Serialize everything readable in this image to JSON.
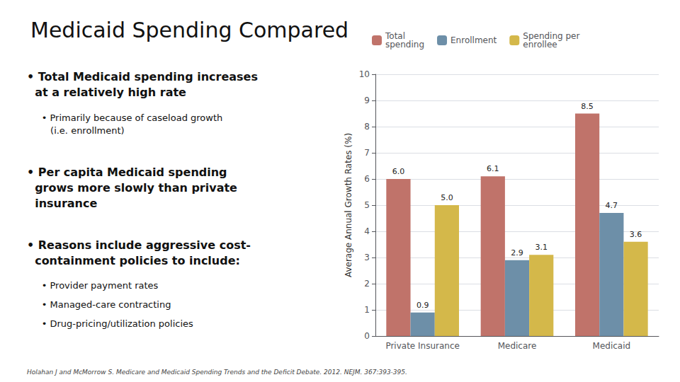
{
  "chart_data": {
    "type": "bar",
    "title": "Medicaid Spending Compared",
    "annotations": [
      "• Total Medicaid spending increases\n  at a relatively high rate",
      "     • Primarily because of caseload growth\n        (i.e. enrollment)",
      "• Per capita Medicaid spending\n  grows more slowly than private\n  insurance",
      "• Reasons include aggressive cost-\n  containment policies to include:",
      "     • Provider payment rates",
      "     • Managed-care contracting",
      "     • Drug-pricing/utilization policies",
      "Holahan J and McMorrow S. Medicare and Medicaid Spending Trends and the Deficit Debate. 2012. NEJM. 367:393-395."
    ],
    "categories": [
      "Private Insurance",
      "Medicare",
      "Medicaid"
    ],
    "series": [
      {
        "name": "Total\nspending",
        "color": "#c0736a",
        "values": [
          6.0,
          6.1,
          8.5
        ],
        "value_labels": [
          "6.0",
          "6.1",
          "8.5"
        ]
      },
      {
        "name": "Enrollment",
        "color": "#6d8fa8",
        "values": [
          0.9,
          2.9,
          4.7
        ],
        "value_labels": [
          "0.9",
          "2.9",
          "4.7"
        ]
      },
      {
        "name": "Spending per\nenrollee",
        "color": "#d4b84a",
        "values": [
          5.0,
          3.1,
          3.6
        ],
        "value_labels": [
          "5.0",
          "3.1",
          "3.6"
        ]
      }
    ],
    "ylabel": "Average Annual Growth Rates (%)",
    "ylim": [
      0,
      10
    ],
    "yticks": [
      0,
      1,
      2,
      3,
      4,
      5,
      6,
      7,
      8,
      9,
      10
    ],
    "grid": true,
    "legend": "top-left",
    "data_labels": true
  }
}
